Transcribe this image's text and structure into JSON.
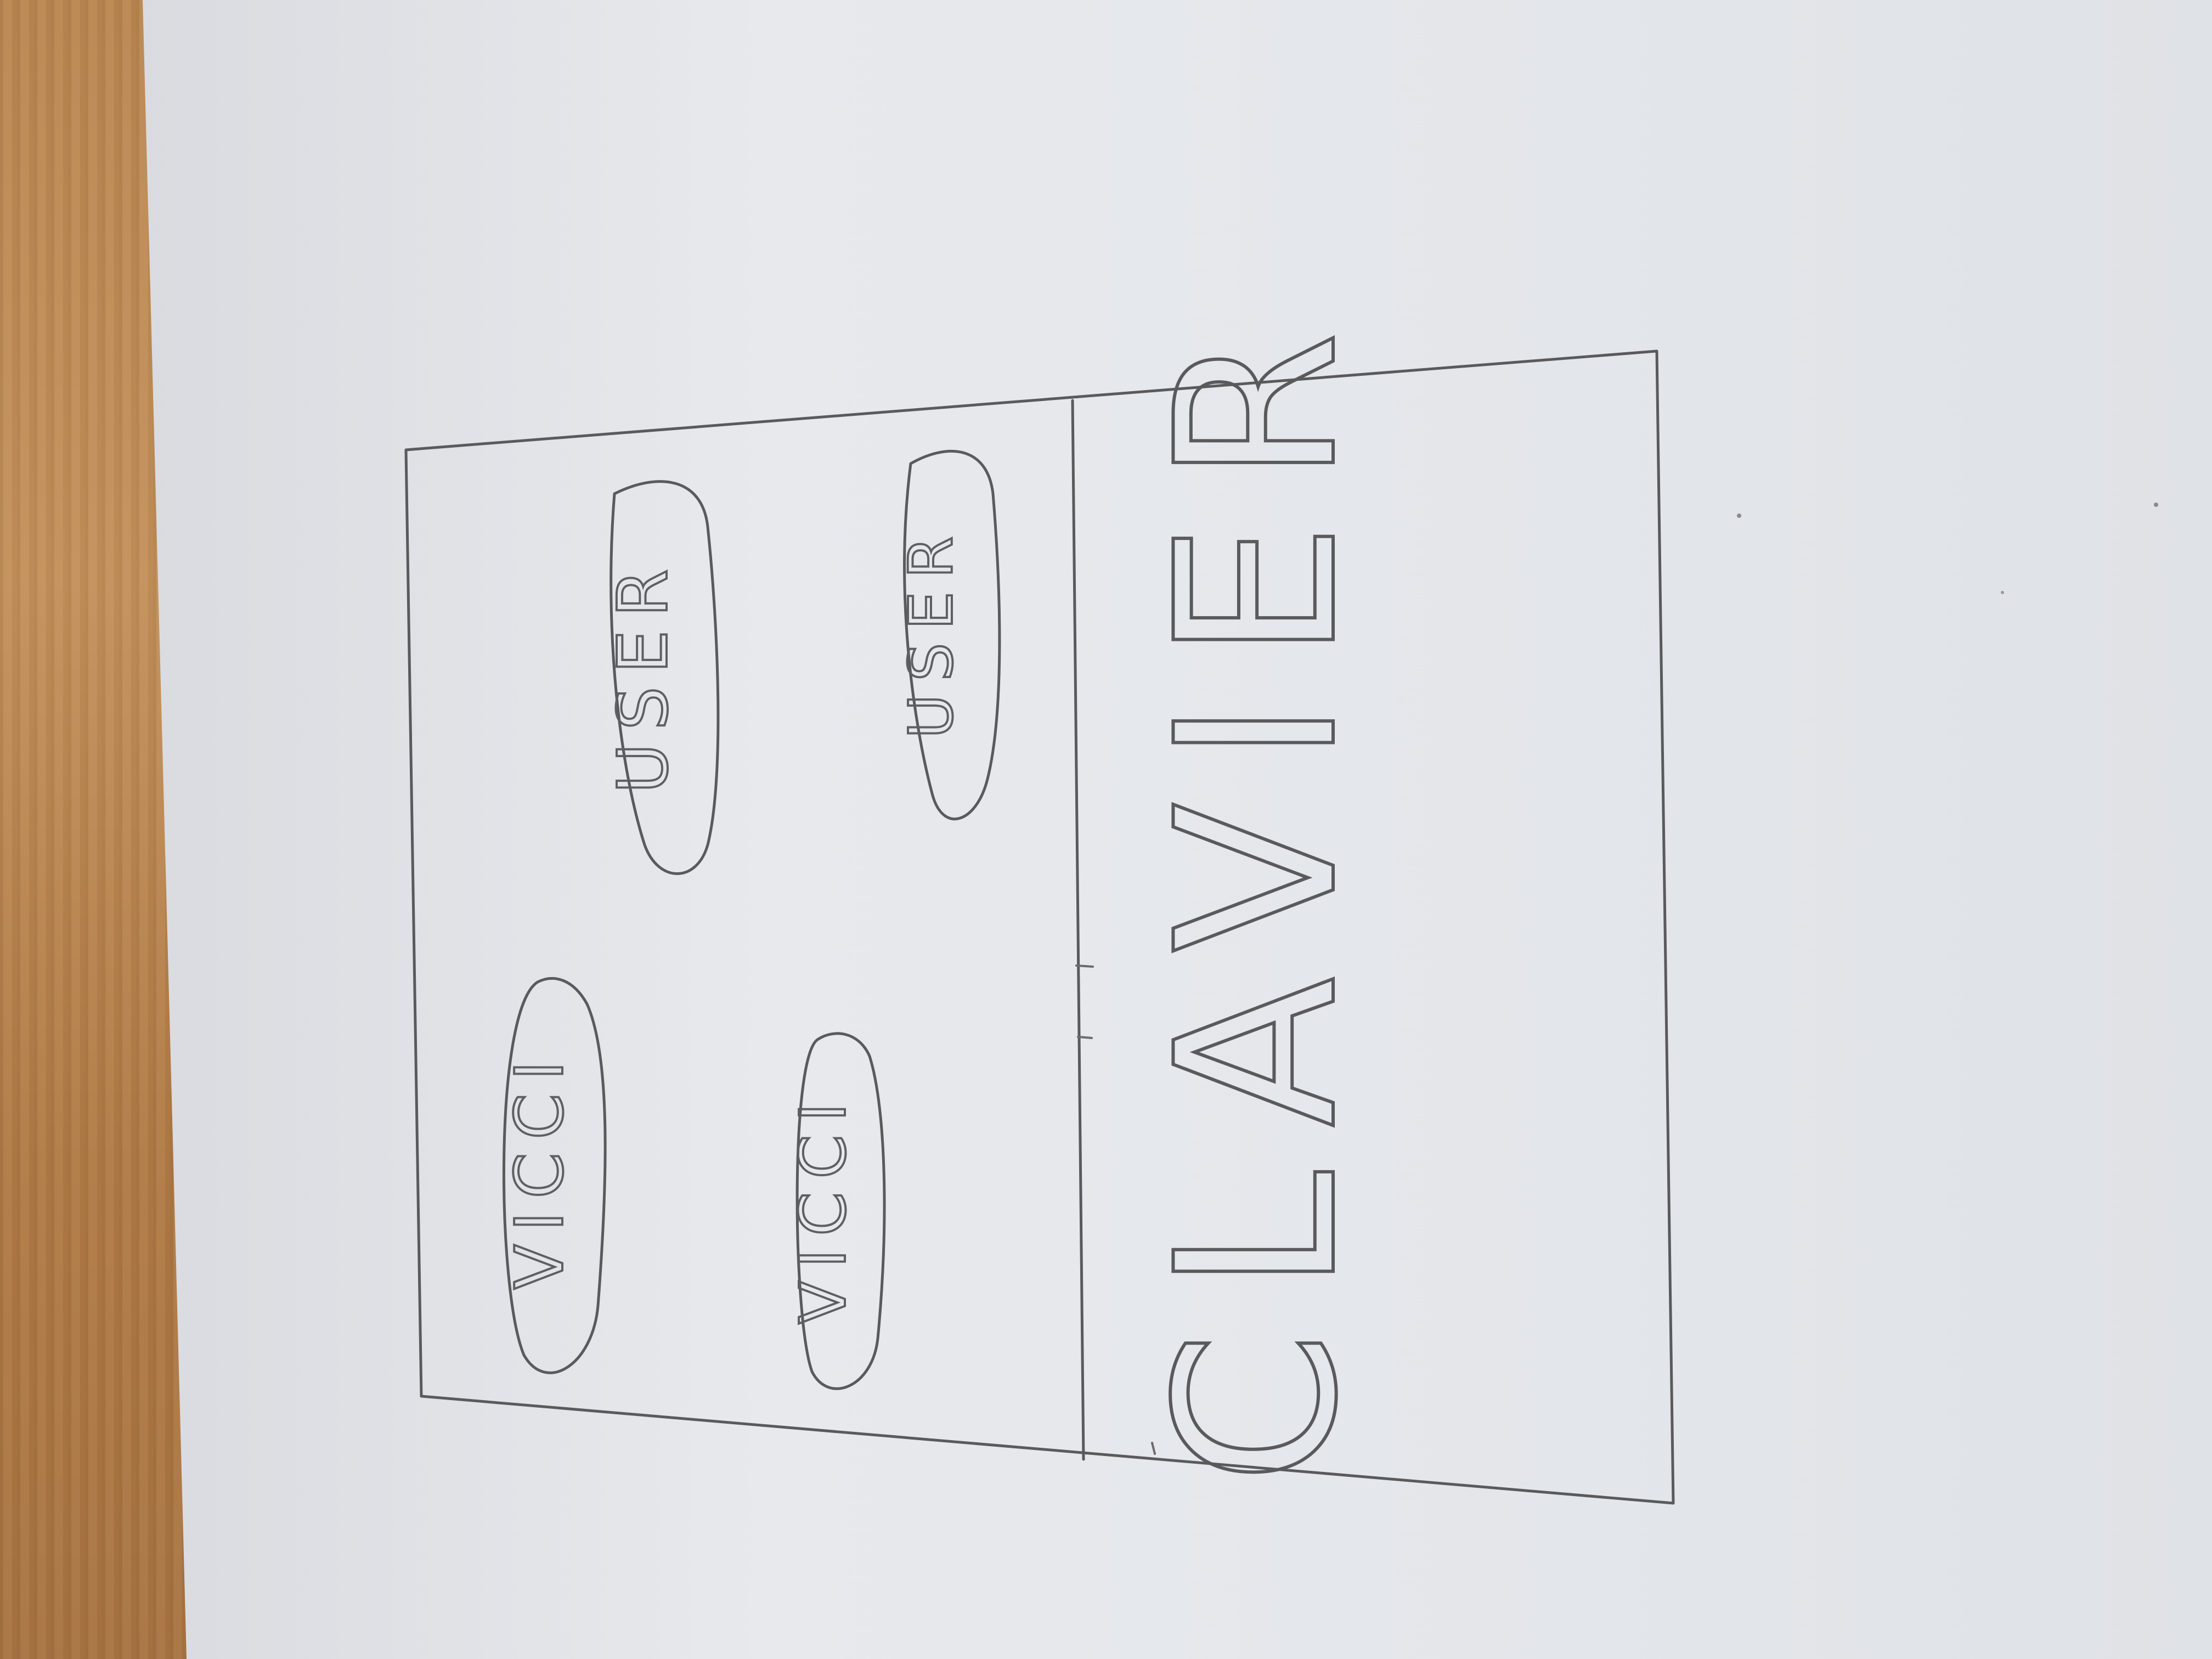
{
  "sketch": {
    "top_panel": {
      "ovals": [
        {
          "label": "VICCI"
        },
        {
          "label": "USER"
        },
        {
          "label": "VICCI"
        },
        {
          "label": "USER"
        }
      ]
    },
    "bottom_panel": {
      "label": "CLAVIER"
    }
  }
}
